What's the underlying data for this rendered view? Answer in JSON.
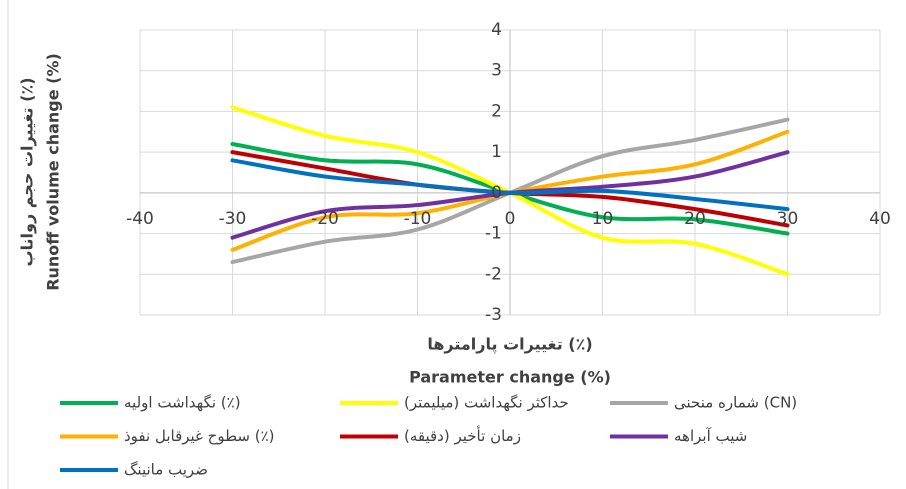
{
  "chart_data": {
    "type": "line",
    "y_title": "تغییرات حجم رواناب (٪)",
    "y_title_en": "Runoff volume change (%)",
    "x_title": "تغییرات پارامترها (٪)",
    "x_title_en": "Parameter change (%)",
    "x": [
      -30,
      -20,
      -10,
      0,
      10,
      20,
      30
    ],
    "xlim": [
      -40,
      40
    ],
    "xticks": [
      -40,
      -30,
      -20,
      -10,
      0,
      10,
      20,
      30,
      40
    ],
    "ylim": [
      -3,
      4
    ],
    "yticks": [
      -3,
      -2,
      -1,
      0,
      1,
      2,
      3,
      4
    ],
    "grid": true,
    "smooth": true,
    "series": [
      {
        "name": "نگهداشت اولیه (٪)",
        "color": "#00b050",
        "values": [
          1.2,
          0.8,
          0.7,
          0,
          -0.6,
          -0.65,
          -1.0
        ]
      },
      {
        "name": "حداکثر نگهداشت (میلیمتر)",
        "color": "#ffff00",
        "values": [
          2.1,
          1.4,
          1.0,
          0,
          -1.1,
          -1.25,
          -2.0
        ]
      },
      {
        "name": "شماره منحنی (CN)",
        "color": "#a6a6a6",
        "values": [
          -1.7,
          -1.2,
          -0.9,
          0,
          0.9,
          1.3,
          1.8
        ]
      },
      {
        "name": "سطوح غیرقابل نفوذ (٪)",
        "color": "#ffb000",
        "values": [
          -1.4,
          -0.6,
          -0.5,
          0,
          0.4,
          0.7,
          1.5
        ]
      },
      {
        "name": "زمان تأخیر (دقیقه)",
        "color": "#c00000",
        "values": [
          1.0,
          0.6,
          0.2,
          0,
          -0.1,
          -0.4,
          -0.8
        ]
      },
      {
        "name": "شیب آبراهه",
        "color": "#7030a0",
        "values": [
          -1.1,
          -0.45,
          -0.3,
          0,
          0.15,
          0.4,
          1.0
        ]
      },
      {
        "name": "ضریب مانینگ",
        "color": "#0070c0",
        "values": [
          0.8,
          0.4,
          0.2,
          0,
          0.05,
          -0.15,
          -0.4
        ]
      }
    ]
  }
}
